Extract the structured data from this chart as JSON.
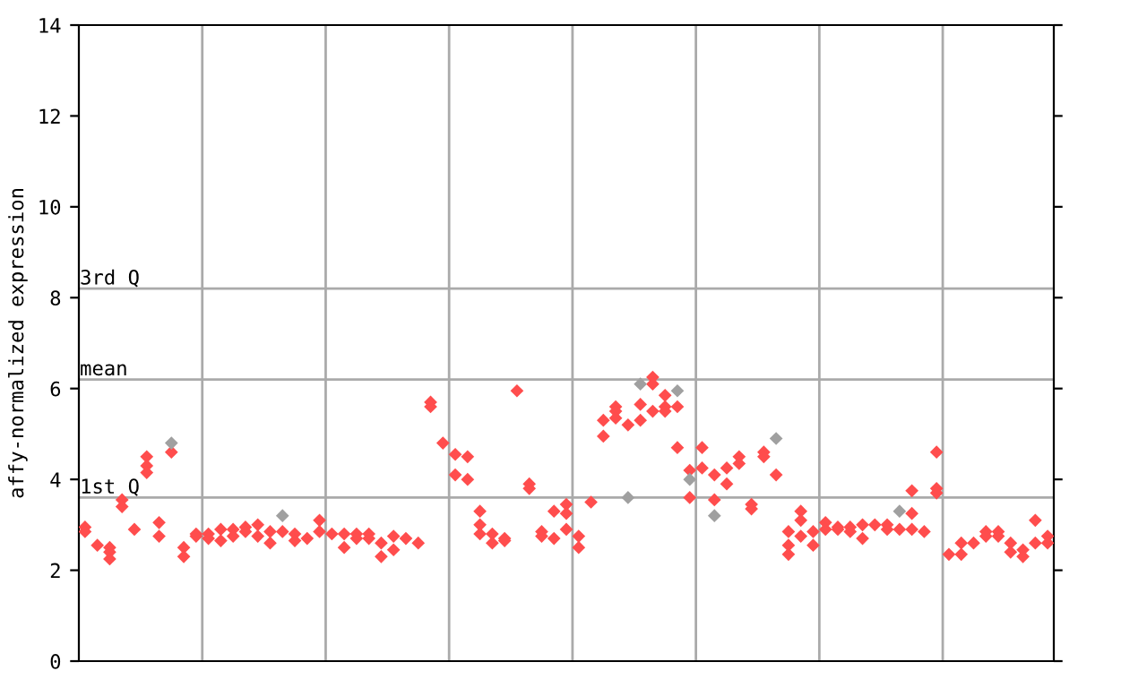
{
  "chart_data": {
    "type": "scatter",
    "ylabel": "affy-normalized expression",
    "categories": [
      null,
      null,
      null,
      null,
      null,
      null,
      null,
      null,
      null,
      null,
      null,
      null,
      null,
      null,
      null,
      null,
      null,
      null,
      null,
      null,
      null,
      null,
      null,
      null,
      null,
      null,
      null,
      null,
      null,
      null,
      null,
      null,
      null,
      null,
      null,
      null,
      null,
      null,
      null,
      null,
      null,
      null,
      null,
      null,
      null,
      null,
      null,
      null,
      null,
      null,
      null,
      null,
      null,
      null,
      null,
      null,
      null,
      null,
      null,
      null,
      null,
      null,
      null,
      null,
      null,
      null,
      null,
      null,
      null,
      null,
      null,
      null,
      null,
      null,
      null,
      null,
      null,
      null,
      null
    ],
    "series": [
      {
        "color": "#ff4d4d",
        "values": [
          2.95,
          2.55,
          2.5,
          3.55,
          2.9,
          4.5,
          3.05,
          null,
          2.5,
          2.8,
          2.8,
          2.9,
          2.9,
          2.95,
          3.0,
          2.85,
          null,
          2.8,
          2.7,
          3.1,
          2.8,
          2.8,
          2.8,
          2.8,
          2.6,
          2.75,
          2.7,
          2.6,
          5.7,
          4.8,
          4.55,
          4.5,
          3.3,
          2.8,
          2.7,
          5.95,
          3.9,
          2.85,
          3.3,
          3.45,
          2.75,
          3.5,
          5.3,
          5.6,
          5.2,
          null,
          6.25,
          5.85,
          null,
          4.2,
          4.7,
          4.1,
          4.25,
          4.5,
          3.45,
          4.6,
          null,
          2.85,
          3.3,
          2.85,
          3.05,
          2.95,
          2.95,
          3.0,
          3.0,
          3.0,
          null,
          3.75,
          2.85,
          4.6,
          2.35,
          2.6,
          2.6,
          2.85,
          2.85,
          2.6,
          2.45,
          3.1,
          2.75
        ]
      },
      {
        "color": "#ff4d4d",
        "values": [
          2.85,
          null,
          2.4,
          3.4,
          null,
          4.3,
          2.75,
          4.6,
          2.3,
          2.75,
          2.7,
          2.65,
          2.75,
          2.85,
          2.75,
          2.6,
          2.85,
          2.65,
          null,
          2.85,
          null,
          2.5,
          2.7,
          2.7,
          2.3,
          2.45,
          null,
          null,
          5.6,
          null,
          4.1,
          4.0,
          3.0,
          2.6,
          2.65,
          null,
          3.8,
          2.75,
          2.7,
          3.25,
          2.5,
          null,
          4.95,
          5.5,
          null,
          5.65,
          6.1,
          5.6,
          5.6,
          null,
          4.25,
          3.55,
          3.9,
          4.35,
          3.35,
          4.5,
          4.1,
          2.55,
          3.1,
          2.55,
          2.9,
          2.9,
          2.85,
          2.7,
          null,
          2.9,
          2.9,
          3.25,
          null,
          3.8,
          null,
          2.35,
          null,
          2.75,
          2.75,
          2.4,
          2.3,
          2.6,
          2.6
        ]
      },
      {
        "color": "#ff4d4d",
        "values": [
          null,
          null,
          2.25,
          null,
          null,
          4.15,
          null,
          null,
          null,
          null,
          null,
          null,
          null,
          null,
          null,
          null,
          null,
          null,
          null,
          null,
          null,
          null,
          null,
          null,
          null,
          null,
          null,
          null,
          null,
          null,
          null,
          null,
          2.8,
          null,
          null,
          null,
          null,
          null,
          null,
          2.9,
          null,
          null,
          null,
          5.35,
          null,
          5.3,
          5.5,
          5.5,
          4.7,
          3.6,
          null,
          null,
          null,
          null,
          null,
          null,
          null,
          2.35,
          2.75,
          null,
          null,
          null,
          null,
          null,
          null,
          null,
          null,
          2.9,
          null,
          3.7,
          null,
          null,
          null,
          null,
          null,
          null,
          null,
          null,
          null
        ]
      },
      {
        "color": "#a0a0a0",
        "values": [
          null,
          null,
          null,
          null,
          null,
          null,
          null,
          4.8,
          null,
          null,
          null,
          null,
          null,
          null,
          null,
          null,
          3.2,
          null,
          null,
          null,
          null,
          null,
          null,
          null,
          null,
          null,
          null,
          null,
          null,
          null,
          null,
          null,
          null,
          null,
          null,
          null,
          null,
          null,
          null,
          null,
          null,
          null,
          null,
          null,
          3.6,
          6.1,
          null,
          null,
          5.95,
          4.0,
          null,
          3.2,
          null,
          null,
          null,
          null,
          4.9,
          null,
          null,
          null,
          null,
          null,
          null,
          null,
          null,
          null,
          3.3,
          null,
          null,
          null,
          null,
          null,
          null,
          null,
          null,
          null,
          null,
          null,
          null
        ]
      }
    ],
    "ylim": [
      0,
      14
    ],
    "yticks": [
      0,
      2,
      4,
      6,
      8,
      10,
      12,
      14
    ],
    "marker": "diamond",
    "grid": false,
    "legend": false,
    "ref_lines": [
      {
        "axis": "y",
        "value": 3.6,
        "label": "1st Q",
        "color": "#aaaaaa"
      },
      {
        "axis": "y",
        "value": 6.2,
        "label": "mean",
        "color": "#aaaaaa"
      },
      {
        "axis": "y",
        "value": 8.2,
        "label": "3rd Q",
        "color": "#aaaaaa"
      }
    ]
  }
}
